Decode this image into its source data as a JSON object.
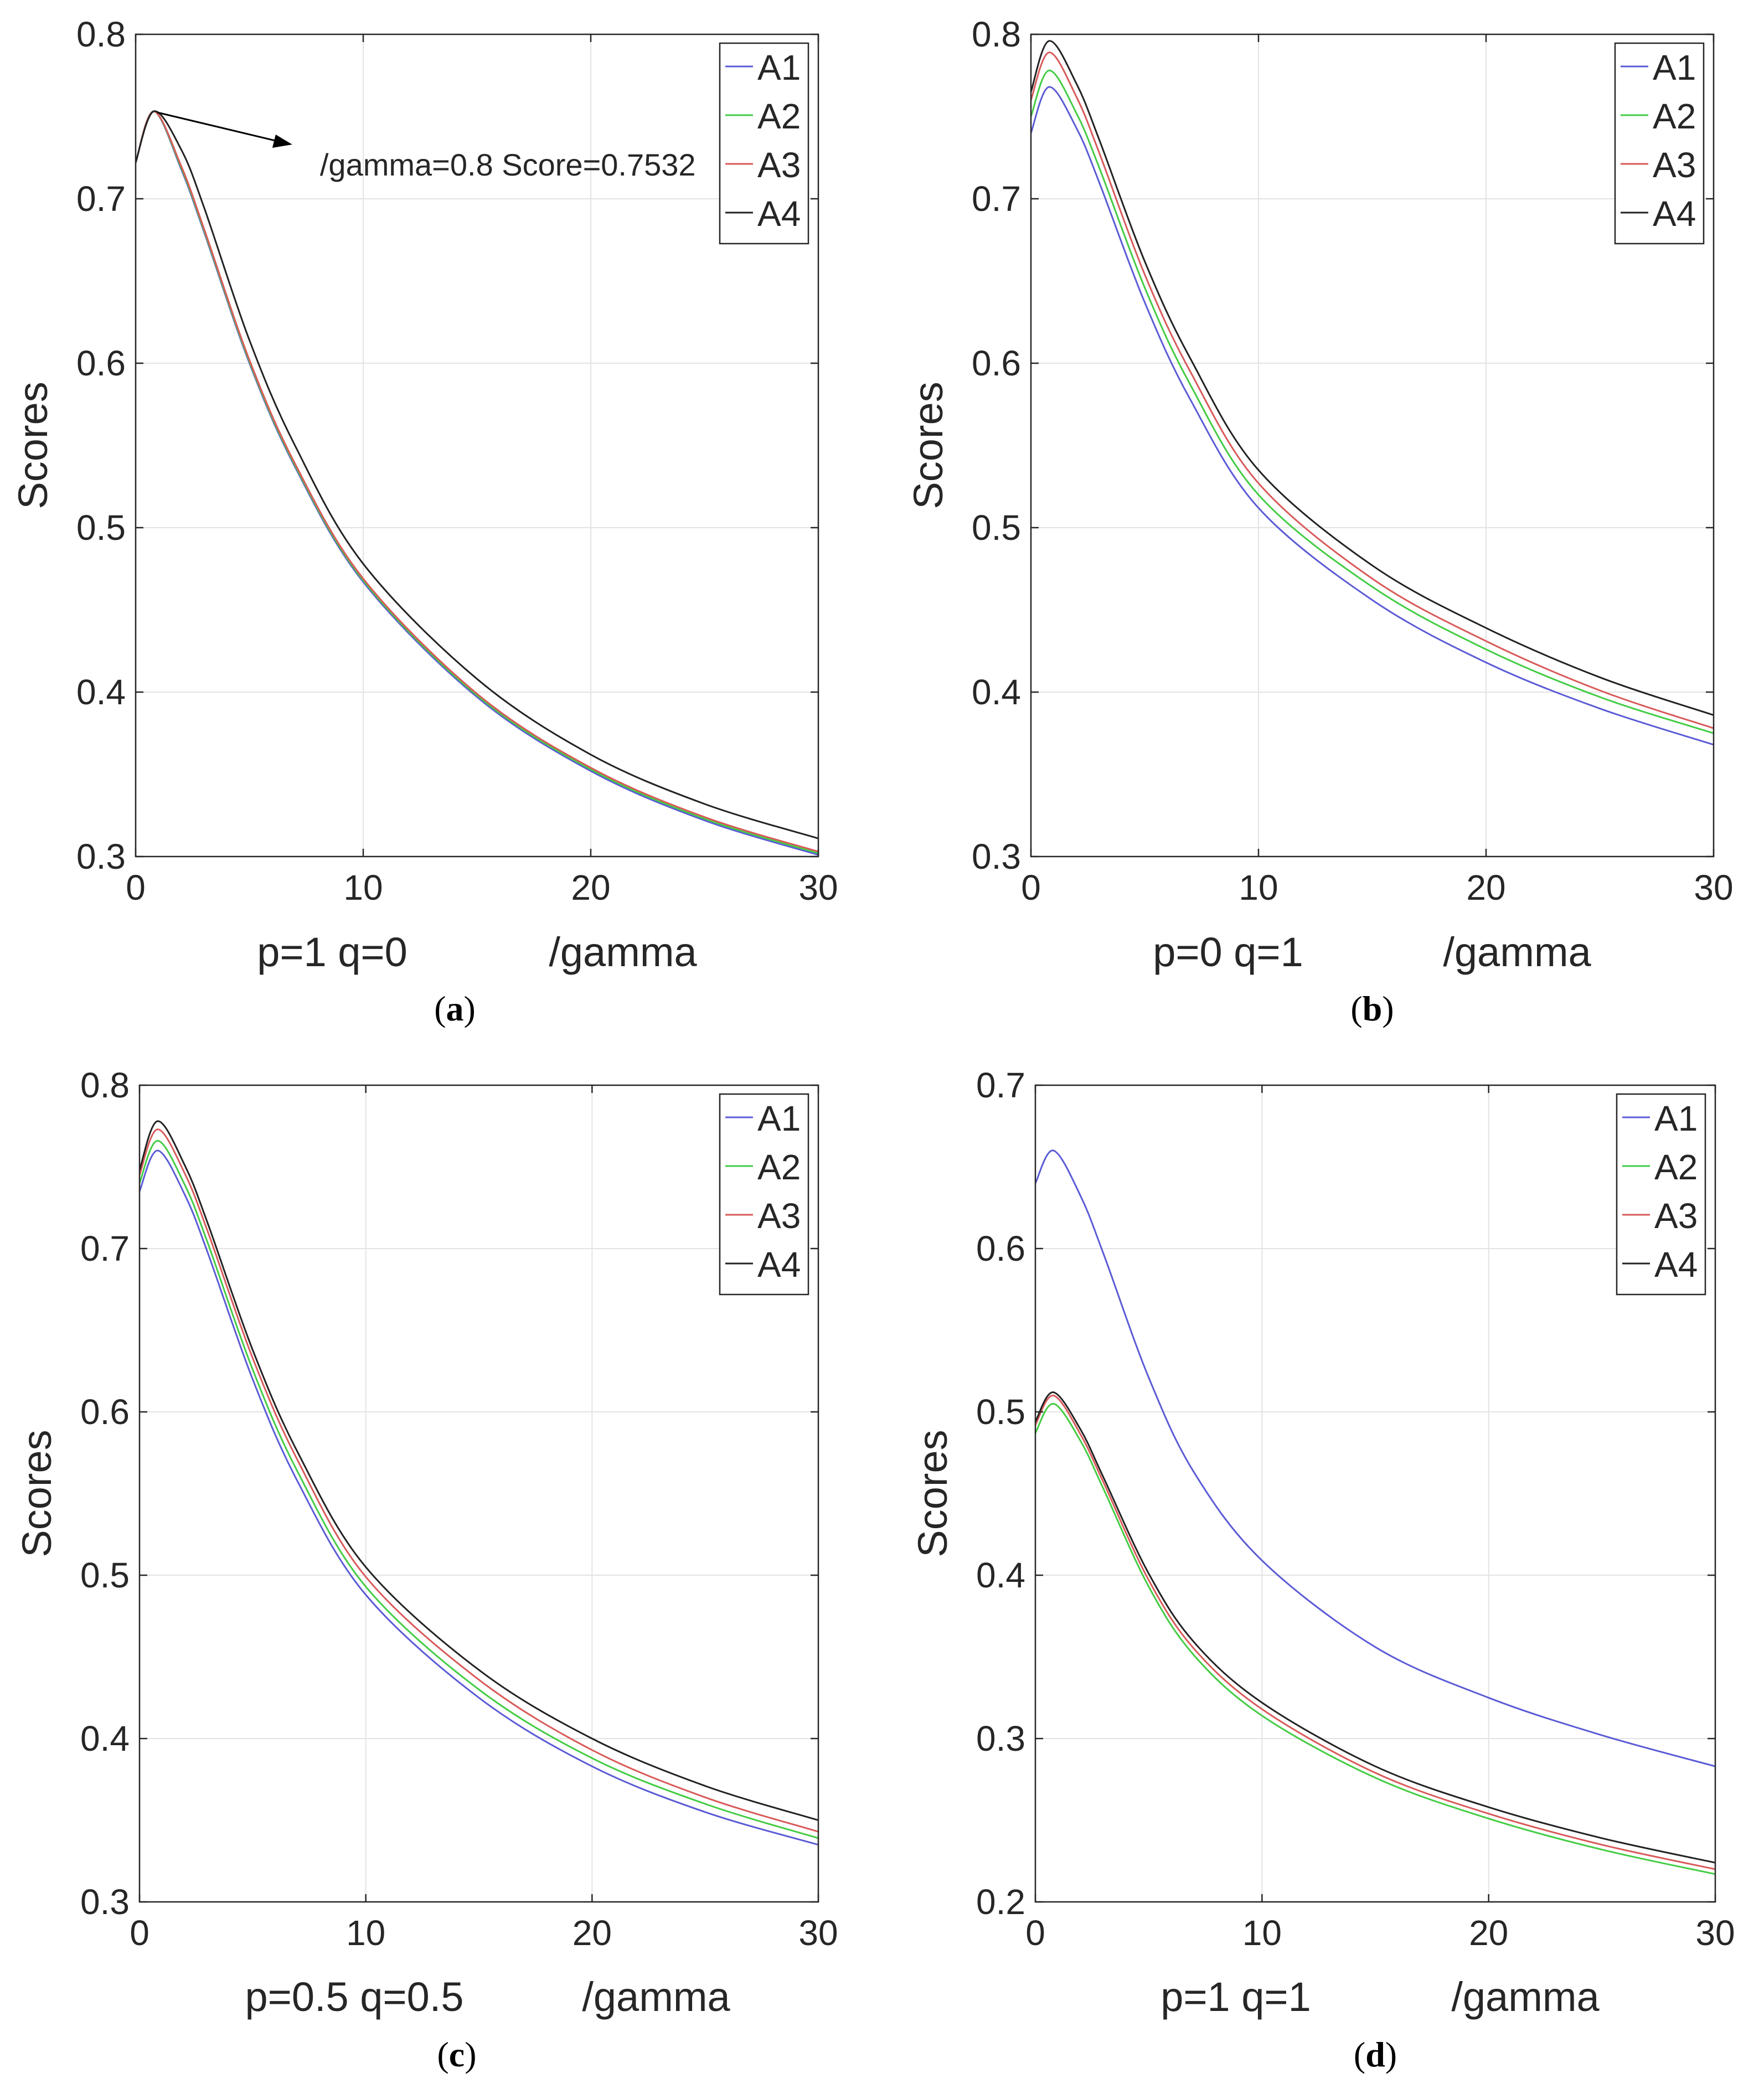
{
  "chart_data": [
    {
      "type": "line",
      "panel_caption": "a",
      "xlabel_params": "p=1 q=0",
      "xlabel_var": "/gamma",
      "ylabel": "Scores",
      "xlim": [
        0,
        30
      ],
      "ylim": [
        0.3,
        0.8
      ],
      "xticks": [
        0,
        10,
        20,
        30
      ],
      "yticks": [
        0.3,
        0.4,
        0.5,
        0.6,
        0.7,
        0.8
      ],
      "xtick_labels": [
        "0",
        "10",
        "20",
        "30"
      ],
      "ytick_labels": [
        "0.3",
        "0.4",
        "0.5",
        "0.6",
        "0.7",
        "0.8"
      ],
      "grid": true,
      "legend_position": "top-right",
      "x": [
        0,
        0.8,
        2,
        3,
        5,
        7,
        10,
        15,
        20,
        25,
        30
      ],
      "series": [
        {
          "name": "A1",
          "color": "#5b5bd6",
          "values": [
            0.722,
            0.7532,
            0.718,
            0.68,
            0.6,
            0.537,
            0.467,
            0.397,
            0.352,
            0.322,
            0.301
          ]
        },
        {
          "name": "A2",
          "color": "#44cc44",
          "values": [
            0.722,
            0.7532,
            0.719,
            0.681,
            0.601,
            0.538,
            0.468,
            0.398,
            0.353,
            0.323,
            0.302
          ]
        },
        {
          "name": "A3",
          "color": "#d95a5a",
          "values": [
            0.722,
            0.7532,
            0.72,
            0.682,
            0.602,
            0.539,
            0.469,
            0.399,
            0.354,
            0.324,
            0.303
          ]
        },
        {
          "name": "A4",
          "color": "#222222",
          "values": [
            0.722,
            0.7532,
            0.73,
            0.695,
            0.614,
            0.55,
            0.478,
            0.408,
            0.362,
            0.332,
            0.311
          ]
        }
      ],
      "annotation": {
        "text": "/gamma=0.8 Score=0.7532",
        "x": 0.8,
        "y": 0.7532
      }
    },
    {
      "type": "line",
      "panel_caption": "b",
      "xlabel_params": "p=0 q=1",
      "xlabel_var": "/gamma",
      "ylabel": "Scores",
      "xlim": [
        0,
        30
      ],
      "ylim": [
        0.3,
        0.8
      ],
      "xticks": [
        0,
        10,
        20,
        30
      ],
      "yticks": [
        0.3,
        0.4,
        0.5,
        0.6,
        0.7,
        0.8
      ],
      "xtick_labels": [
        "0",
        "10",
        "20",
        "30"
      ],
      "ytick_labels": [
        "0.3",
        "0.4",
        "0.5",
        "0.6",
        "0.7",
        "0.8"
      ],
      "grid": true,
      "legend_position": "top-right",
      "x": [
        0,
        0.8,
        2,
        3,
        5,
        7,
        10,
        15,
        20,
        25,
        30
      ],
      "series": [
        {
          "name": "A1",
          "color": "#5b5bd6",
          "values": [
            0.74,
            0.768,
            0.743,
            0.71,
            0.637,
            0.578,
            0.512,
            0.456,
            0.418,
            0.39,
            0.368
          ]
        },
        {
          "name": "A2",
          "color": "#44cc44",
          "values": [
            0.75,
            0.778,
            0.752,
            0.719,
            0.646,
            0.587,
            0.52,
            0.464,
            0.426,
            0.397,
            0.375
          ]
        },
        {
          "name": "A3",
          "color": "#d95a5a",
          "values": [
            0.76,
            0.789,
            0.762,
            0.728,
            0.654,
            0.595,
            0.527,
            0.469,
            0.431,
            0.401,
            0.378
          ]
        },
        {
          "name": "A4",
          "color": "#222222",
          "values": [
            0.765,
            0.796,
            0.77,
            0.736,
            0.662,
            0.603,
            0.535,
            0.477,
            0.439,
            0.409,
            0.386
          ]
        }
      ]
    },
    {
      "type": "line",
      "panel_caption": "c",
      "xlabel_params": "p=0.5 q=0.5",
      "xlabel_var": "/gamma",
      "ylabel": "Scores",
      "xlim": [
        0,
        30
      ],
      "ylim": [
        0.3,
        0.8
      ],
      "xticks": [
        0,
        10,
        20,
        30
      ],
      "yticks": [
        0.3,
        0.4,
        0.5,
        0.6,
        0.7,
        0.8
      ],
      "xtick_labels": [
        "0",
        "10",
        "20",
        "30"
      ],
      "ytick_labels": [
        "0.3",
        "0.4",
        "0.5",
        "0.6",
        "0.7",
        "0.8"
      ],
      "grid": true,
      "legend_position": "top-right",
      "x": [
        0,
        0.8,
        2,
        3,
        5,
        7,
        10,
        15,
        20,
        25,
        30
      ],
      "series": [
        {
          "name": "A1",
          "color": "#5b5bd6",
          "values": [
            0.735,
            0.76,
            0.733,
            0.698,
            0.62,
            0.557,
            0.488,
            0.425,
            0.383,
            0.355,
            0.335
          ]
        },
        {
          "name": "A2",
          "color": "#44cc44",
          "values": [
            0.74,
            0.766,
            0.739,
            0.704,
            0.626,
            0.563,
            0.493,
            0.43,
            0.388,
            0.36,
            0.339
          ]
        },
        {
          "name": "A3",
          "color": "#d95a5a",
          "values": [
            0.745,
            0.773,
            0.746,
            0.711,
            0.633,
            0.57,
            0.499,
            0.436,
            0.393,
            0.364,
            0.343
          ]
        },
        {
          "name": "A4",
          "color": "#222222",
          "values": [
            0.748,
            0.778,
            0.751,
            0.716,
            0.638,
            0.575,
            0.505,
            0.442,
            0.4,
            0.371,
            0.35
          ]
        }
      ]
    },
    {
      "type": "line",
      "panel_caption": "d",
      "xlabel_params": "p=1 q=1",
      "xlabel_var": "/gamma",
      "ylabel": "Scores",
      "xlim": [
        0,
        30
      ],
      "ylim": [
        0.2,
        0.7
      ],
      "xticks": [
        0,
        10,
        20,
        30
      ],
      "yticks": [
        0.2,
        0.3,
        0.4,
        0.5,
        0.6,
        0.7
      ],
      "xtick_labels": [
        "0",
        "10",
        "20",
        "30"
      ],
      "ytick_labels": [
        "0.2",
        "0.3",
        "0.4",
        "0.5",
        "0.6",
        "0.7"
      ],
      "grid": true,
      "legend_position": "top-right",
      "x": [
        0,
        0.8,
        2,
        3,
        5,
        7,
        10,
        15,
        20,
        25,
        30
      ],
      "series": [
        {
          "name": "A1",
          "color": "#5b5bd6",
          "values": [
            0.64,
            0.66,
            0.632,
            0.597,
            0.521,
            0.463,
            0.409,
            0.356,
            0.325,
            0.302,
            0.283
          ]
        },
        {
          "name": "A2",
          "color": "#44cc44",
          "values": [
            0.487,
            0.505,
            0.482,
            0.453,
            0.393,
            0.351,
            0.314,
            0.276,
            0.251,
            0.232,
            0.217
          ]
        },
        {
          "name": "A3",
          "color": "#d95a5a",
          "values": [
            0.492,
            0.51,
            0.486,
            0.457,
            0.397,
            0.355,
            0.318,
            0.279,
            0.254,
            0.235,
            0.22
          ]
        },
        {
          "name": "A4",
          "color": "#222222",
          "values": [
            0.494,
            0.512,
            0.489,
            0.46,
            0.401,
            0.359,
            0.322,
            0.283,
            0.258,
            0.239,
            0.224
          ]
        }
      ]
    }
  ]
}
